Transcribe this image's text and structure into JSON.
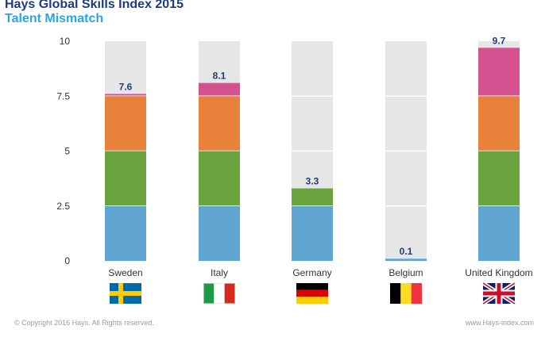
{
  "header": {
    "title": "Hays Global Skills Index 2015",
    "subtitle": "Talent Mismatch"
  },
  "footer": {
    "copyright": "© Copyright 2016 Hays. All Rights reserved.",
    "url": "www.Hays-index.com"
  },
  "colors": {
    "background_bar": "#e6e6e6",
    "segments": [
      "#5fa5d0",
      "#6aa23d",
      "#e8813a",
      "#d4508f"
    ],
    "value_label": "#1d3c78",
    "axis_text": "#333333"
  },
  "chart_data": {
    "type": "bar",
    "stacked": true,
    "title": "Hays Global Skills Index 2015",
    "subtitle": "Talent Mismatch",
    "xlabel": "",
    "ylabel": "",
    "ylim": [
      0,
      10
    ],
    "yticks": [
      0,
      2.5,
      5,
      7.5,
      10
    ],
    "ytick_labels": [
      "0",
      "2.5",
      "5",
      "7.5",
      "10"
    ],
    "segment_size": 2.5,
    "grid": false,
    "categories": [
      "Sweden",
      "Italy",
      "Germany",
      "Belgium",
      "United Kingdom"
    ],
    "values": [
      7.6,
      8.1,
      3.3,
      0.1,
      9.7
    ],
    "value_labels": [
      "7.6",
      "8.1",
      "3.3",
      "0.1",
      "9.7"
    ],
    "flags": [
      "sweden-flag",
      "italy-flag",
      "germany-flag",
      "belgium-flag",
      "united-kingdom-flag"
    ]
  }
}
